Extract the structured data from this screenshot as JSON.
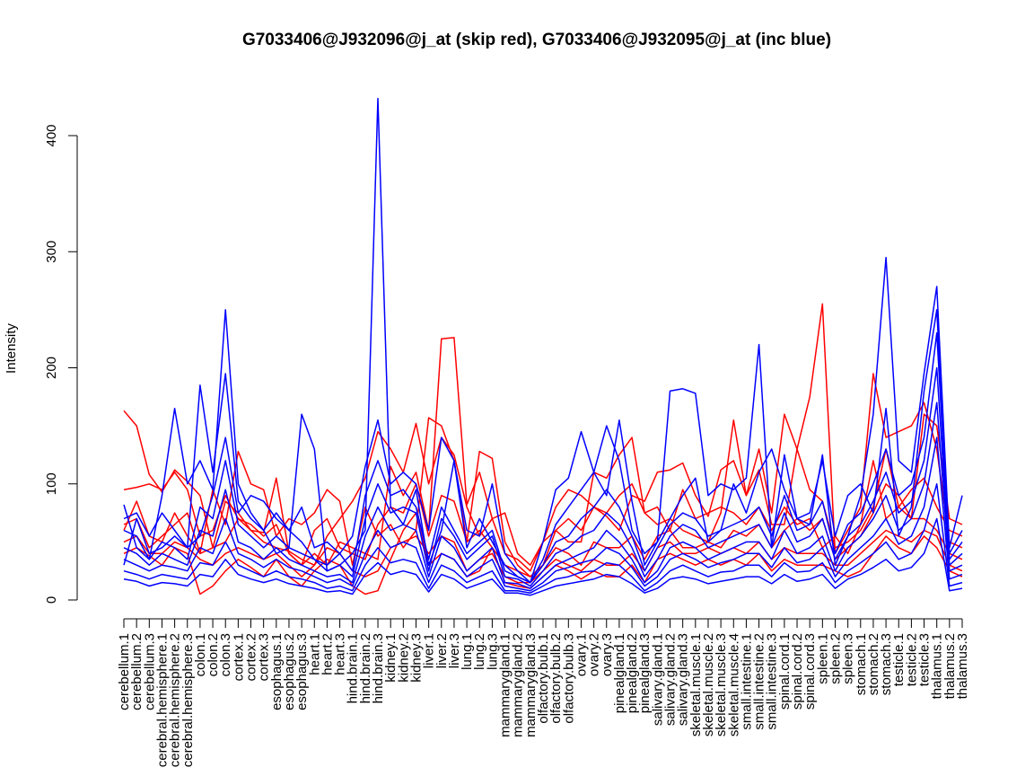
{
  "chart_data": {
    "type": "line",
    "title": "G7033406@J932096@j_at (skip red), G7033406@J932095@j_at (inc blue)",
    "xlabel": "",
    "ylabel": "Intensity",
    "ylim": [
      0,
      420
    ],
    "yticks": [
      0,
      100,
      200,
      300,
      400
    ],
    "grid": false,
    "legend": "none",
    "colors": {
      "skip": "#ff0000",
      "inc": "#0000ff"
    },
    "categories": [
      "cerebellum.1",
      "cerebellum.2",
      "cerebellum.3",
      "cerebral.hemisphere.1",
      "cerebral.hemisphere.2",
      "cerebral.hemisphere.3",
      "colon.1",
      "colon.2",
      "colon.3",
      "cortex.1",
      "cortex.2",
      "cortex.3",
      "esophagus.1",
      "esophagus.2",
      "esophagus.3",
      "heart.1",
      "heart.2",
      "heart.3",
      "hind.brain.1",
      "hind.brain.2",
      "hind.brain.3",
      "kidney.1",
      "kidney.2",
      "kidney.3",
      "liver.1",
      "liver.2",
      "liver.3",
      "lung.1",
      "lung.2",
      "lung.3",
      "mammarygland.1",
      "mammarygland.2",
      "mammarygland.3",
      "olfactory.bulb.1",
      "olfactory.bulb.2",
      "olfactory.bulb.3",
      "ovary.1",
      "ovary.2",
      "ovary.3",
      "pinealgland.1",
      "pinealgland.2",
      "pinealgland.3",
      "salivary.gland.1",
      "salivary.gland.2",
      "salivary.gland.3",
      "skeletal.muscle.1",
      "skeletal.muscle.2",
      "skeletal.muscle.3",
      "skeletal.muscle.4",
      "small.intestine.1",
      "small.intestine.2",
      "small.intestine.3",
      "spinal.cord.1",
      "spinal.cord.2",
      "spinal.cord.3",
      "spleen.1",
      "spleen.2",
      "spleen.3",
      "stomach.1",
      "stomach.2",
      "stomach.3",
      "testicle.1",
      "testicle.2",
      "testicle.3",
      "thalamus.1",
      "thalamus.2",
      "thalamus.3"
    ],
    "series": [
      {
        "name": "skip_1",
        "group": "skip",
        "values": [
          163,
          150,
          108,
          93,
          112,
          102,
          90,
          45,
          85,
          75,
          60,
          50,
          45,
          42,
          35,
          30,
          55,
          70,
          85,
          105,
          145,
          130,
          110,
          152,
          100,
          140,
          125,
          80,
          55,
          70,
          75,
          40,
          30,
          50,
          80,
          95,
          90,
          80,
          75,
          90,
          100,
          75,
          80,
          60,
          95,
          70,
          75,
          80,
          75,
          65,
          80,
          60,
          80,
          65,
          70,
          45,
          55,
          40,
          65,
          120,
          70,
          80,
          95,
          105,
          80,
          60,
          55
        ]
      },
      {
        "name": "skip_2",
        "group": "skip",
        "values": [
          95,
          97,
          100,
          95,
          110,
          95,
          55,
          60,
          90,
          70,
          60,
          58,
          105,
          40,
          30,
          40,
          30,
          50,
          45,
          40,
          35,
          115,
          90,
          110,
          60,
          225,
          226,
          82,
          110,
          70,
          40,
          35,
          25,
          50,
          60,
          70,
          60,
          80,
          72,
          60,
          90,
          85,
          110,
          112,
          118,
          90,
          72,
          112,
          120,
          90,
          130,
          75,
          160,
          130,
          175,
          255,
          40,
          60,
          80,
          195,
          140,
          145,
          150,
          170,
          130,
          50,
          45
        ]
      },
      {
        "name": "skip_3",
        "group": "skip",
        "values": [
          60,
          85,
          55,
          50,
          75,
          55,
          40,
          95,
          65,
          128,
          100,
          95,
          55,
          70,
          65,
          75,
          95,
          85,
          30,
          80,
          55,
          65,
          45,
          60,
          157,
          150,
          120,
          50,
          128,
          122,
          50,
          30,
          20,
          30,
          60,
          50,
          50,
          110,
          105,
          125,
          140,
          75,
          65,
          70,
          60,
          55,
          50,
          75,
          155,
          90,
          112,
          65,
          65,
          130,
          95,
          85,
          45,
          50,
          60,
          80,
          130,
          80,
          70,
          160,
          150,
          70,
          65
        ]
      },
      {
        "name": "skip_4",
        "group": "skip",
        "values": [
          65,
          70,
          45,
          55,
          65,
          75,
          40,
          45,
          50,
          70,
          65,
          55,
          65,
          40,
          30,
          60,
          70,
          45,
          40,
          35,
          65,
          80,
          75,
          100,
          55,
          90,
          85,
          50,
          60,
          45,
          30,
          25,
          20,
          30,
          45,
          40,
          30,
          50,
          45,
          45,
          55,
          35,
          55,
          60,
          45,
          45,
          50,
          45,
          60,
          55,
          65,
          45,
          60,
          70,
          60,
          70,
          35,
          45,
          55,
          75,
          100,
          90,
          70,
          70,
          60,
          40,
          35
        ]
      },
      {
        "name": "skip_5",
        "group": "skip",
        "values": [
          40,
          45,
          38,
          30,
          45,
          40,
          5,
          12,
          25,
          35,
          28,
          20,
          35,
          20,
          12,
          25,
          35,
          30,
          12,
          5,
          8,
          35,
          60,
          75,
          30,
          40,
          35,
          20,
          25,
          45,
          15,
          12,
          10,
          20,
          30,
          25,
          18,
          25,
          20,
          20,
          30,
          15,
          35,
          40,
          35,
          30,
          35,
          30,
          35,
          30,
          40,
          25,
          35,
          30,
          30,
          30,
          25,
          20,
          25,
          40,
          55,
          45,
          40,
          55,
          45,
          25,
          20
        ]
      },
      {
        "name": "skip_6",
        "group": "skip",
        "values": [
          50,
          55,
          40,
          40,
          50,
          45,
          35,
          30,
          40,
          45,
          40,
          35,
          40,
          30,
          20,
          30,
          45,
          40,
          25,
          20,
          25,
          45,
          50,
          55,
          40,
          55,
          50,
          25,
          35,
          40,
          20,
          15,
          15,
          25,
          35,
          30,
          25,
          35,
          30,
          30,
          40,
          25,
          45,
          50,
          40,
          40,
          45,
          40,
          45,
          40,
          50,
          35,
          45,
          40,
          40,
          40,
          30,
          30,
          40,
          50,
          60,
          55,
          50,
          60,
          55,
          30,
          25
        ]
      },
      {
        "name": "inc_1",
        "group": "inc",
        "values": [
          82,
          45,
          35,
          90,
          165,
          100,
          120,
          95,
          250,
          100,
          75,
          60,
          40,
          45,
          160,
          130,
          25,
          30,
          40,
          60,
          432,
          80,
          65,
          95,
          30,
          60,
          120,
          45,
          70,
          50,
          30,
          20,
          15,
          35,
          65,
          80,
          95,
          110,
          150,
          120,
          60,
          40,
          50,
          180,
          182,
          178,
          90,
          100,
          95,
          105,
          220,
          45,
          125,
          70,
          65,
          125,
          30,
          55,
          90,
          160,
          295,
          120,
          110,
          195,
          270,
          45,
          90
        ]
      },
      {
        "name": "inc_2",
        "group": "inc",
        "values": [
          70,
          75,
          55,
          75,
          60,
          45,
          185,
          110,
          195,
          85,
          70,
          60,
          75,
          60,
          80,
          45,
          50,
          40,
          55,
          115,
          155,
          100,
          110,
          100,
          60,
          140,
          120,
          60,
          55,
          100,
          40,
          25,
          15,
          50,
          95,
          105,
          145,
          110,
          90,
          155,
          85,
          30,
          50,
          70,
          90,
          105,
          50,
          60,
          100,
          75,
          110,
          130,
          95,
          70,
          75,
          120,
          55,
          90,
          100,
          75,
          165,
          55,
          80,
          180,
          250,
          40,
          60
        ]
      },
      {
        "name": "inc_3",
        "group": "inc",
        "values": [
          30,
          70,
          40,
          45,
          55,
          45,
          55,
          90,
          140,
          75,
          90,
          85,
          70,
          60,
          50,
          35,
          30,
          40,
          25,
          90,
          120,
          90,
          95,
          80,
          35,
          80,
          60,
          40,
          50,
          60,
          25,
          20,
          15,
          30,
          50,
          55,
          70,
          80,
          95,
          80,
          55,
          25,
          45,
          65,
          75,
          70,
          55,
          60,
          65,
          70,
          80,
          55,
          90,
          60,
          65,
          85,
          40,
          65,
          75,
          100,
          130,
          90,
          100,
          140,
          230,
          35,
          50
        ]
      },
      {
        "name": "inc_4",
        "group": "inc",
        "values": [
          60,
          55,
          35,
          50,
          45,
          35,
          80,
          70,
          120,
          65,
          55,
          45,
          55,
          45,
          40,
          35,
          25,
          30,
          20,
          70,
          100,
          75,
          80,
          75,
          25,
          70,
          55,
          35,
          45,
          55,
          20,
          18,
          12,
          25,
          40,
          45,
          55,
          60,
          75,
          65,
          45,
          20,
          35,
          55,
          65,
          60,
          45,
          50,
          55,
          60,
          65,
          45,
          75,
          50,
          55,
          70,
          35,
          55,
          65,
          85,
          110,
          75,
          85,
          120,
          200,
          30,
          40
        ]
      },
      {
        "name": "inc_5",
        "group": "inc",
        "values": [
          45,
          40,
          30,
          40,
          35,
          30,
          60,
          55,
          95,
          50,
          45,
          35,
          45,
          35,
          30,
          25,
          20,
          22,
          15,
          55,
          80,
          60,
          65,
          60,
          20,
          55,
          45,
          25,
          35,
          45,
          15,
          14,
          10,
          20,
          30,
          35,
          40,
          45,
          60,
          50,
          35,
          15,
          25,
          45,
          50,
          45,
          35,
          40,
          45,
          50,
          50,
          35,
          60,
          40,
          45,
          55,
          25,
          45,
          55,
          70,
          90,
          60,
          70,
          100,
          170,
          25,
          30
        ]
      },
      {
        "name": "inc_6",
        "group": "inc",
        "values": [
          35,
          30,
          25,
          30,
          28,
          25,
          45,
          40,
          70,
          40,
          35,
          28,
          35,
          28,
          25,
          20,
          15,
          18,
          12,
          40,
          60,
          45,
          50,
          45,
          15,
          40,
          35,
          20,
          28,
          35,
          12,
          10,
          8,
          15,
          25,
          28,
          32,
          35,
          45,
          40,
          28,
          12,
          20,
          35,
          40,
          35,
          28,
          32,
          35,
          40,
          40,
          28,
          45,
          32,
          35,
          45,
          20,
          35,
          45,
          55,
          70,
          48,
          55,
          80,
          140,
          18,
          22
        ]
      },
      {
        "name": "inc_7",
        "group": "inc",
        "values": [
          25,
          22,
          18,
          22,
          20,
          18,
          32,
          30,
          50,
          30,
          25,
          20,
          25,
          20,
          18,
          15,
          10,
          12,
          8,
          30,
          45,
          32,
          35,
          32,
          10,
          30,
          25,
          15,
          20,
          25,
          8,
          8,
          6,
          12,
          18,
          20,
          24,
          25,
          32,
          30,
          20,
          8,
          15,
          25,
          30,
          25,
          20,
          24,
          25,
          30,
          30,
          20,
          32,
          24,
          25,
          32,
          15,
          25,
          32,
          40,
          50,
          35,
          40,
          60,
          100,
          12,
          15
        ]
      },
      {
        "name": "inc_8",
        "group": "inc",
        "values": [
          18,
          16,
          12,
          15,
          14,
          12,
          22,
          20,
          35,
          22,
          18,
          15,
          18,
          14,
          12,
          10,
          7,
          8,
          5,
          22,
          32,
          22,
          25,
          22,
          7,
          22,
          18,
          10,
          14,
          18,
          6,
          6,
          4,
          8,
          12,
          14,
          16,
          18,
          22,
          20,
          14,
          6,
          10,
          18,
          20,
          18,
          14,
          16,
          18,
          20,
          20,
          14,
          22,
          16,
          18,
          22,
          10,
          18,
          22,
          28,
          35,
          25,
          28,
          40,
          70,
          8,
          10
        ]
      }
    ]
  }
}
